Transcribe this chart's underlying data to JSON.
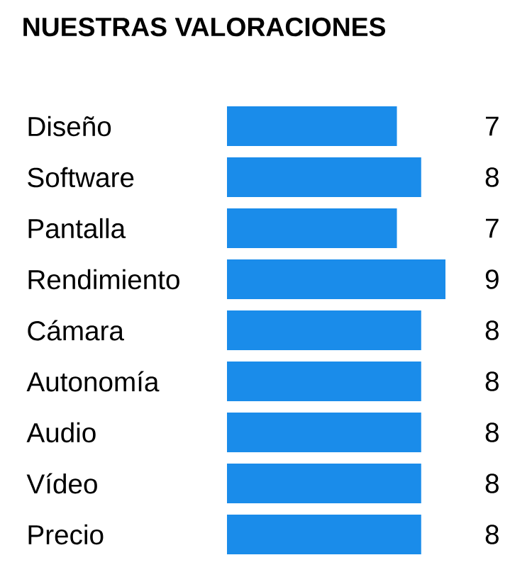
{
  "chart_data": {
    "type": "bar",
    "orientation": "horizontal",
    "title": "NUESTRAS VALORACIONES",
    "categories": [
      "Diseño",
      "Software",
      "Pantalla",
      "Rendimiento",
      "Cámara",
      "Autonomía",
      "Audio",
      "Vídeo",
      "Precio"
    ],
    "values": [
      7,
      8,
      7,
      9,
      8,
      8,
      8,
      8,
      8
    ],
    "color": "#1a8cea",
    "data_labels": true
  }
}
